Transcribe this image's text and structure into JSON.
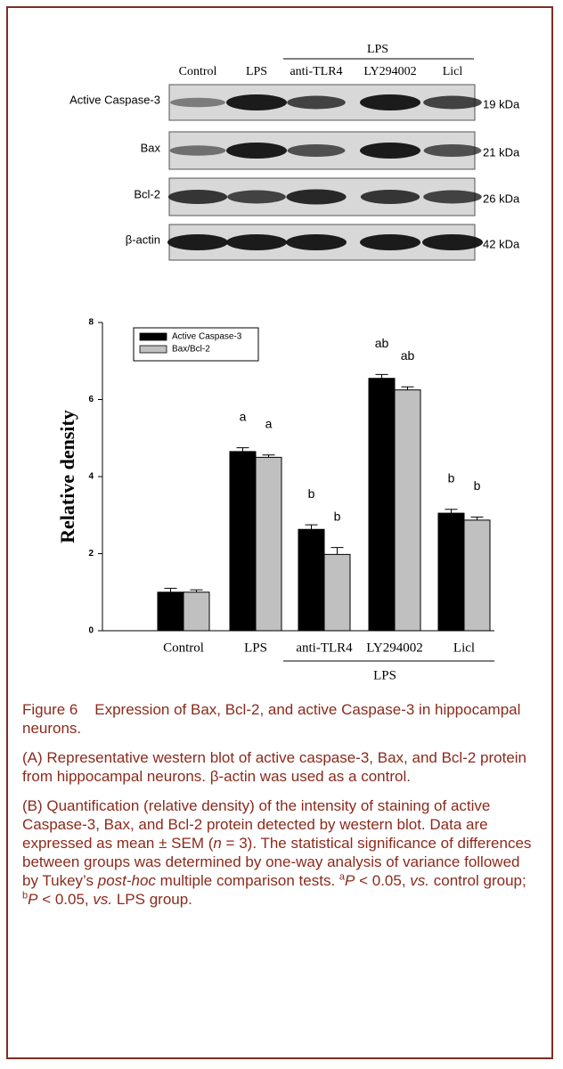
{
  "blot": {
    "group_label": "LPS",
    "lanes": [
      "Control",
      "LPS",
      "anti-TLR4",
      "LY294002",
      "Licl"
    ],
    "rows": [
      {
        "label": "Active Caspase-3",
        "kda": "19 kDa"
      },
      {
        "label": "Bax",
        "kda": "21 kDa"
      },
      {
        "label": "Bcl-2",
        "kda": "26 kDa"
      },
      {
        "label": "β-actin",
        "kda": "42 kDa"
      }
    ]
  },
  "chart_data": {
    "type": "bar",
    "ylabel": "Relative density",
    "group_label": "LPS",
    "categories": [
      "Control",
      "LPS",
      "anti-TLR4",
      "LY294002",
      "Licl"
    ],
    "series": [
      {
        "name": "Active Caspase-3",
        "color": "#000000",
        "values": [
          1.0,
          4.65,
          2.63,
          6.55,
          3.05
        ],
        "errors": [
          0.1,
          0.1,
          0.12,
          0.1,
          0.1
        ],
        "annotations": [
          null,
          "a",
          "b",
          "ab",
          "b"
        ]
      },
      {
        "name": "Bax/Bcl-2",
        "color": "#c0c0c0",
        "values": [
          1.0,
          4.5,
          1.98,
          6.25,
          2.87
        ],
        "errors": [
          0.06,
          0.06,
          0.18,
          0.08,
          0.08
        ],
        "annotations": [
          null,
          "a",
          "b",
          "ab",
          "b"
        ]
      }
    ],
    "ylim": [
      0,
      8
    ],
    "yticks": [
      0,
      2,
      4,
      6,
      8
    ]
  },
  "caption": {
    "title": "Figure 6    Expression of Bax, Bcl-2, and active Caspase-3 in hippocampal neurons.",
    "panel_a": "(A) Representative western blot of active caspase-3, Bax, and Bcl-2 protein from hippocampal neurons. β-actin was used as a control.",
    "panel_b": [
      "(B) Quantification (relative density) of the intensity of staining of active Caspase-3, Bax, and Bcl-2 protein detected by western blot. Data are expressed as mean ± SEM (",
      "n",
      " = 3). The statistical significance of differences between groups was determined by one-way analysis of variance followed by Tukey’s ",
      "post-hoc",
      " multiple comparison tests. ",
      "a",
      "P",
      " < 0.05, ",
      "vs.",
      " control group; ",
      "b",
      "P",
      " < 0.05, ",
      "vs.",
      " LPS group."
    ]
  }
}
